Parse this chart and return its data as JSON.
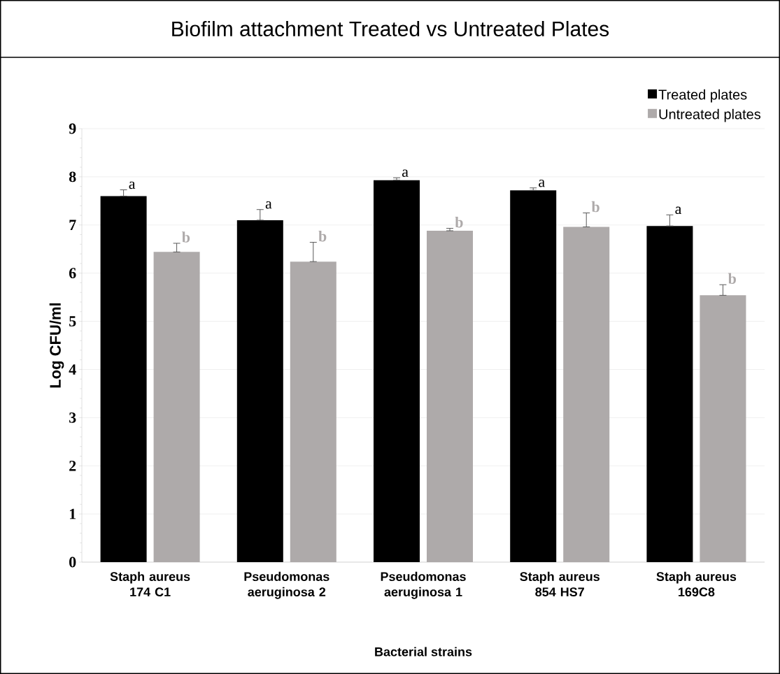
{
  "chart_data": {
    "type": "bar",
    "title": "Biofilm attachment Treated vs Untreated Plates",
    "xlabel": "Bacterial strains",
    "ylabel": "Log CFU/ml",
    "categories": [
      "Staph aureus 174 C1",
      "Pseudomonas aeruginosa 2",
      "Pseudomonas aeruginosa 1",
      "Staph aureus 854 HS7",
      "Staph aureus 169C8"
    ],
    "series": [
      {
        "name": "Treated plates",
        "color": "#000000",
        "values": [
          7.6,
          7.1,
          7.93,
          7.72,
          6.98
        ],
        "errors": [
          [
            7.6,
            7.73
          ],
          [
            7.1,
            7.32
          ],
          [
            7.93,
            7.98
          ],
          [
            7.72,
            7.77
          ],
          [
            6.98,
            7.21
          ]
        ],
        "value_labels": [
          "a",
          "a",
          "a",
          "a",
          "a"
        ]
      },
      {
        "name": "Untreated plates",
        "color": "#aeaaaa",
        "values": [
          6.44,
          6.24,
          6.88,
          6.96,
          5.54
        ],
        "errors": [
          [
            6.44,
            6.62
          ],
          [
            6.24,
            6.64
          ],
          [
            6.88,
            6.93
          ],
          [
            6.96,
            7.25
          ],
          [
            5.54,
            5.76
          ]
        ],
        "value_labels": [
          "b",
          "b",
          "b",
          "b",
          "b"
        ]
      }
    ],
    "ylim": [
      0,
      9
    ],
    "yticks": [
      0,
      1,
      2,
      3,
      4,
      5,
      6,
      7,
      8,
      9
    ],
    "grid": "y",
    "legend": "top right"
  }
}
